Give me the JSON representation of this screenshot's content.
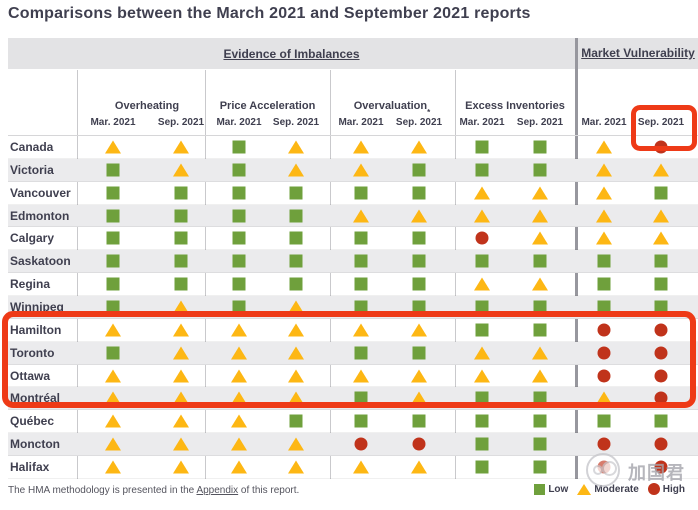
{
  "title": "Comparisons between the March 2021 and September 2021 reports",
  "header": {
    "evidence_of_imbalances": "Evidence of Imbalances",
    "market_vulnerability": "Market Vulnerability"
  },
  "table": {
    "groups": [
      {
        "label": "Overheating"
      },
      {
        "label": "Price Acceleration"
      },
      {
        "label": "Overvaluation",
        "sup": "*"
      },
      {
        "label": "Excess Inventories"
      }
    ],
    "period": {
      "mar": "Mar. 2021",
      "sep": "Sep. 2021"
    }
  },
  "chart_data": {
    "type": "table",
    "title": "Comparisons between the March 2021 and September 2021 reports",
    "columns": [
      "Overheating Mar. 2021",
      "Overheating Sep. 2021",
      "Price Acceleration Mar. 2021",
      "Price Acceleration Sep. 2021",
      "Overvaluation Mar. 2021",
      "Overvaluation Sep. 2021",
      "Excess Inventories Mar. 2021",
      "Excess Inventories Sep. 2021",
      "Market Vulnerability Mar. 2021",
      "Market Vulnerability Sep. 2021"
    ],
    "rating_scale": {
      "low": "green square",
      "moderate": "yellow triangle",
      "high": "red circle"
    },
    "rows": [
      {
        "city": "Canada",
        "ratings": [
          "moderate",
          "moderate",
          "low",
          "moderate",
          "moderate",
          "moderate",
          "low",
          "low",
          "moderate",
          "high"
        ]
      },
      {
        "city": "Victoria",
        "ratings": [
          "low",
          "moderate",
          "low",
          "moderate",
          "moderate",
          "low",
          "low",
          "low",
          "moderate",
          "moderate"
        ]
      },
      {
        "city": "Vancouver",
        "ratings": [
          "low",
          "low",
          "low",
          "low",
          "low",
          "low",
          "moderate",
          "moderate",
          "moderate",
          "low"
        ]
      },
      {
        "city": "Edmonton",
        "ratings": [
          "low",
          "low",
          "low",
          "low",
          "moderate",
          "moderate",
          "moderate",
          "moderate",
          "moderate",
          "moderate"
        ]
      },
      {
        "city": "Calgary",
        "ratings": [
          "low",
          "low",
          "low",
          "low",
          "low",
          "low",
          "high",
          "moderate",
          "moderate",
          "moderate"
        ]
      },
      {
        "city": "Saskatoon",
        "ratings": [
          "low",
          "low",
          "low",
          "low",
          "low",
          "low",
          "low",
          "low",
          "low",
          "low"
        ]
      },
      {
        "city": "Regina",
        "ratings": [
          "low",
          "low",
          "low",
          "low",
          "low",
          "low",
          "moderate",
          "moderate",
          "low",
          "low"
        ]
      },
      {
        "city": "Winnipeg",
        "ratings": [
          "low",
          "moderate",
          "low",
          "moderate",
          "low",
          "low",
          "low",
          "low",
          "low",
          "low"
        ]
      },
      {
        "city": "Hamilton",
        "ratings": [
          "moderate",
          "moderate",
          "moderate",
          "moderate",
          "moderate",
          "moderate",
          "low",
          "low",
          "high",
          "high"
        ]
      },
      {
        "city": "Toronto",
        "ratings": [
          "low",
          "moderate",
          "moderate",
          "moderate",
          "low",
          "low",
          "moderate",
          "moderate",
          "high",
          "high"
        ]
      },
      {
        "city": "Ottawa",
        "ratings": [
          "moderate",
          "moderate",
          "moderate",
          "moderate",
          "moderate",
          "moderate",
          "moderate",
          "moderate",
          "high",
          "high"
        ]
      },
      {
        "city": "Montréal",
        "ratings": [
          "moderate",
          "moderate",
          "moderate",
          "moderate",
          "low",
          "moderate",
          "low",
          "low",
          "moderate",
          "high"
        ]
      },
      {
        "city": "Québec",
        "ratings": [
          "moderate",
          "moderate",
          "moderate",
          "low",
          "low",
          "low",
          "low",
          "low",
          "low",
          "low"
        ]
      },
      {
        "city": "Moncton",
        "ratings": [
          "moderate",
          "moderate",
          "moderate",
          "moderate",
          "high",
          "high",
          "low",
          "low",
          "high",
          "high"
        ]
      },
      {
        "city": "Halifax",
        "ratings": [
          "moderate",
          "moderate",
          "moderate",
          "moderate",
          "moderate",
          "moderate",
          "low",
          "low",
          "high",
          "high"
        ]
      }
    ]
  },
  "legend": [
    {
      "name": "low",
      "label": "Low"
    },
    {
      "name": "moderate",
      "label": "Moderate"
    },
    {
      "name": "high",
      "label": "High"
    }
  ],
  "footnote": {
    "before": "The HMA methodology is presented in the ",
    "link": "Appendix",
    "after": " of this report."
  },
  "watermark": {
    "text": "加国君"
  },
  "colors": {
    "low": "#6FA03C",
    "moderate": "#FDB714",
    "high": "#C0331B",
    "annotation_box": "#EE3A17",
    "header_text": "#3F3F4F"
  },
  "annotations": [
    {
      "name": "highlight-canada-sep-2021-market-vulnerability"
    },
    {
      "name": "highlight-rows-hamilton-toronto-ottawa-montreal"
    }
  ]
}
